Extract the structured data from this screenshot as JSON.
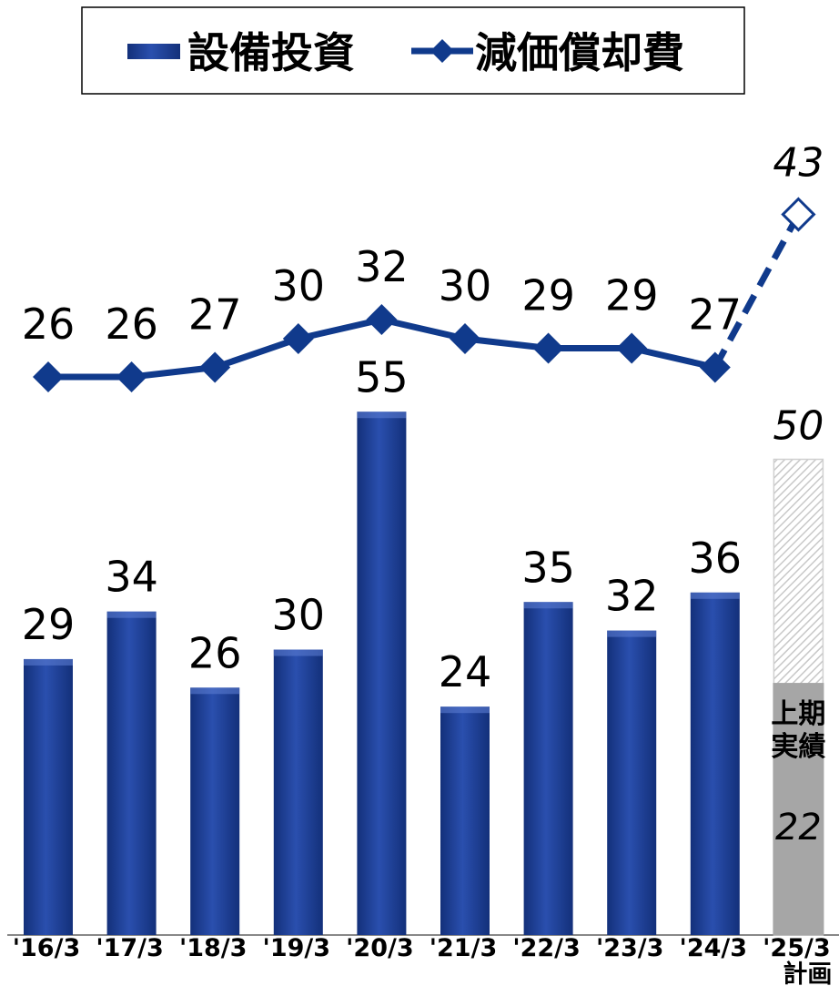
{
  "chart_data": {
    "type": "bar+line",
    "categories": [
      "'16/3",
      "'17/3",
      "'18/3",
      "'19/3",
      "'20/3",
      "'21/3",
      "'22/3",
      "'23/3",
      "'24/3",
      "'25/3"
    ],
    "series": [
      {
        "name": "設備投資",
        "type": "bar",
        "values": [
          29,
          34,
          26,
          30,
          55,
          24,
          35,
          32,
          36,
          50
        ],
        "labels": [
          "29",
          "34",
          "26",
          "30",
          "55",
          "24",
          "35",
          "32",
          "36",
          "50"
        ]
      },
      {
        "name": "減価償却費",
        "type": "line",
        "values": [
          26,
          26,
          27,
          30,
          32,
          30,
          29,
          29,
          27,
          43
        ],
        "labels": [
          "26",
          "26",
          "27",
          "30",
          "32",
          "30",
          "29",
          "29",
          "27",
          "43"
        ]
      }
    ],
    "plan_category_index": 9,
    "plan_note": "計画",
    "first_half_actual": {
      "label_line1": "上期",
      "label_line2": "実績",
      "value": 22,
      "value_label": "22"
    },
    "legend_position": "top-center",
    "grid": false,
    "colors": {
      "bar": "#1a3a8c",
      "bar_light": "#3558b8",
      "line": "#103a8c",
      "plan_hatch": "#c8c8c8",
      "first_half_fill": "#a6a6a6"
    }
  }
}
